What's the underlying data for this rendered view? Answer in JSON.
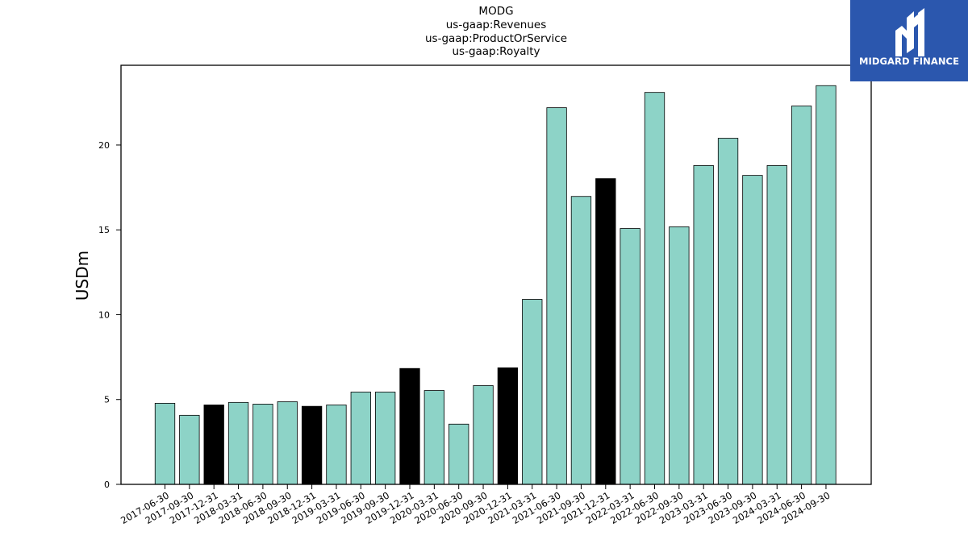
{
  "chart_data": {
    "type": "bar",
    "title_lines": [
      "MODG",
      "us-gaap:Revenues",
      "us-gaap:ProductOrService",
      "us-gaap:Royalty"
    ],
    "xlabel": "",
    "ylabel": "USDm",
    "ylim": [
      0,
      24.7
    ],
    "yticks": [
      0,
      5,
      10,
      15,
      20
    ],
    "grid": false,
    "categories": [
      "2017-06-30",
      "2017-09-30",
      "2017-12-31",
      "2018-03-31",
      "2018-06-30",
      "2018-09-30",
      "2018-12-31",
      "2019-03-31",
      "2019-06-30",
      "2019-09-30",
      "2019-12-31",
      "2020-03-31",
      "2020-06-30",
      "2020-09-30",
      "2020-12-31",
      "2021-03-31",
      "2021-06-30",
      "2021-09-30",
      "2021-12-31",
      "2022-03-31",
      "2022-06-30",
      "2022-09-30",
      "2023-03-31",
      "2023-06-30",
      "2023-09-30",
      "2024-03-31",
      "2024-06-30",
      "2024-09-30"
    ],
    "values": [
      4.78,
      4.07,
      4.68,
      4.83,
      4.73,
      4.87,
      4.6,
      4.68,
      5.44,
      5.44,
      6.83,
      5.53,
      3.55,
      5.82,
      6.87,
      10.9,
      22.2,
      16.97,
      18.02,
      15.08,
      23.1,
      15.18,
      18.79,
      20.4,
      18.21,
      18.79,
      22.3,
      23.5
    ],
    "highlighted": [
      false,
      false,
      true,
      false,
      false,
      false,
      true,
      false,
      false,
      false,
      true,
      false,
      false,
      false,
      true,
      false,
      false,
      false,
      true,
      false,
      false,
      false,
      false,
      false,
      false,
      false,
      false,
      false
    ],
    "colors": {
      "bar": "#8dd3c7",
      "highlight": "#000000",
      "edge": "#000000"
    }
  },
  "logo": {
    "text": "MIDGARD FINANCE"
  }
}
